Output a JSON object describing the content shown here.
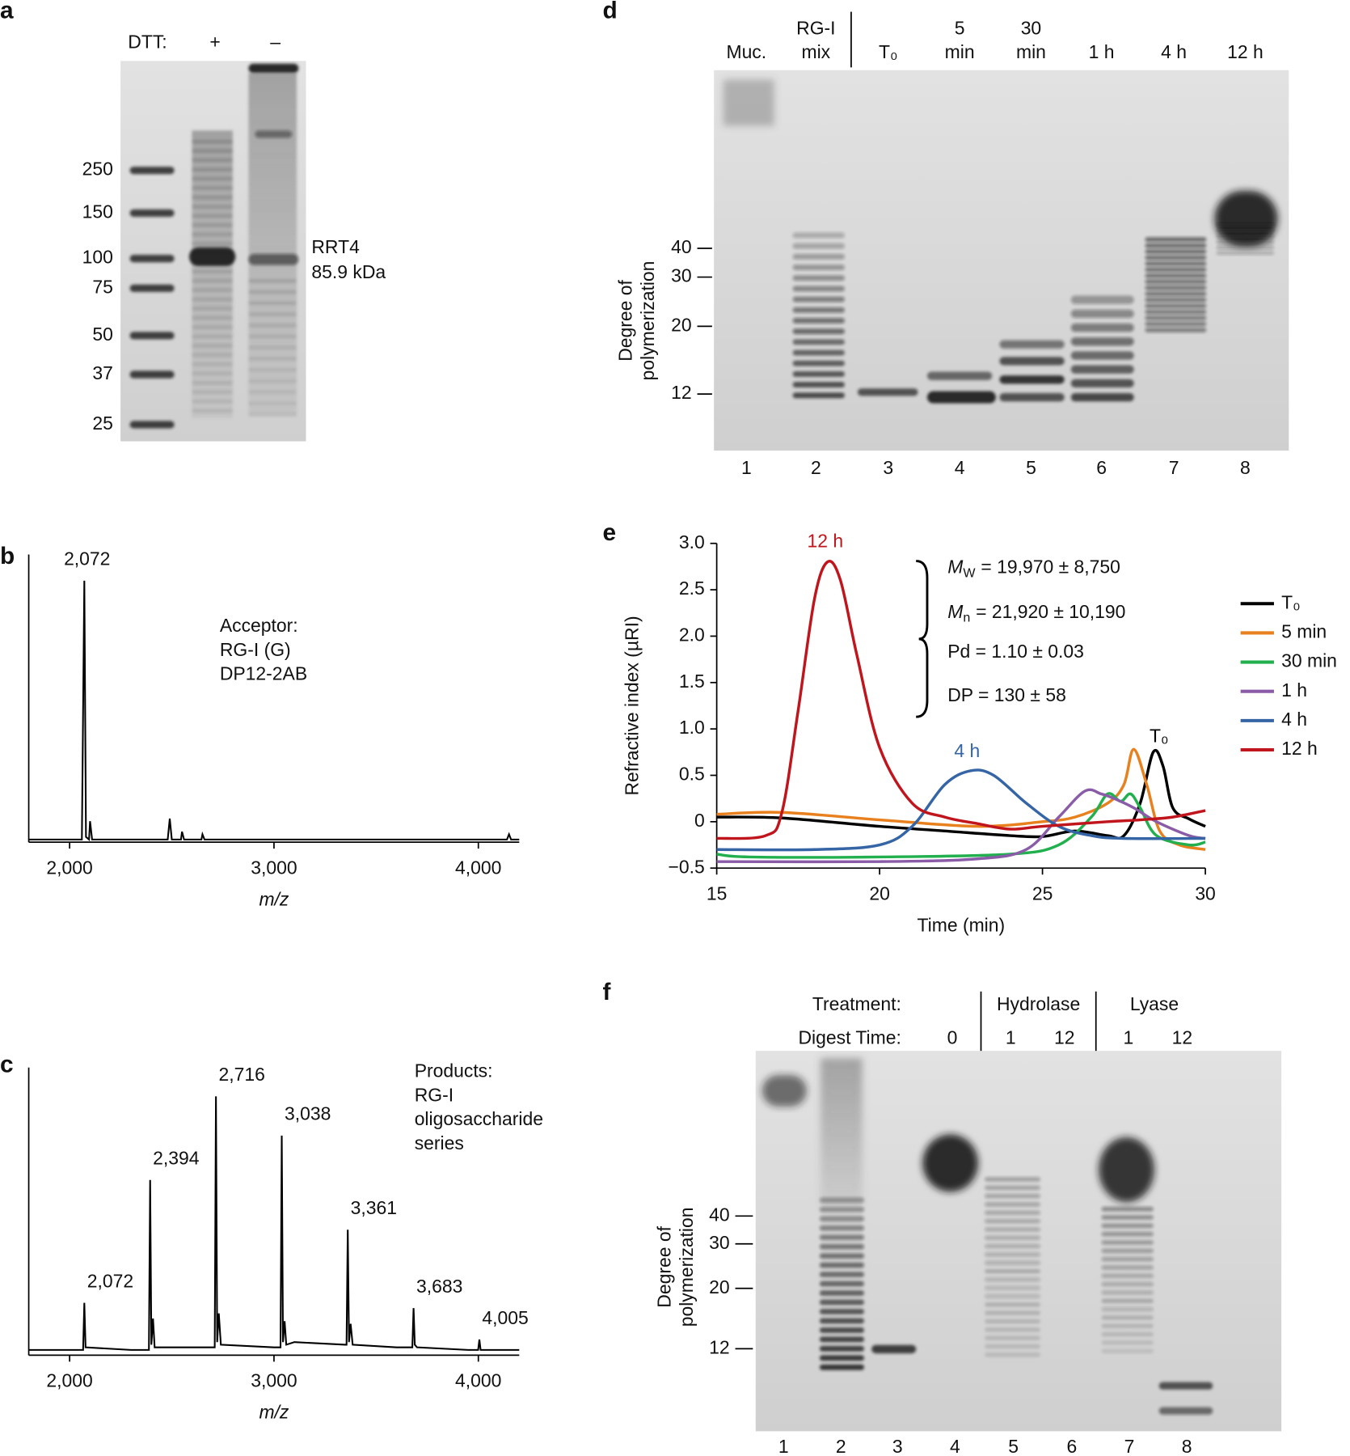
{
  "chart_data": [
    {
      "type": "line",
      "panel_label": "b",
      "x_label": "m/z",
      "color": "#000000",
      "xlim": [
        1800,
        4200
      ],
      "ylim": [
        0,
        110
      ],
      "xticks": [
        {
          "value": 2000,
          "label": "2,000"
        },
        {
          "value": 3000,
          "label": "3,000"
        },
        {
          "value": 4000,
          "label": "4,000"
        }
      ],
      "x": [
        1800,
        2000,
        2060,
        2072,
        2080,
        2095,
        2100,
        2110,
        2480,
        2490,
        2500,
        2545,
        2550,
        2560,
        2645,
        2650,
        2660,
        3000,
        3500,
        4140,
        4150,
        4160,
        4200
      ],
      "values": [
        1,
        1,
        1,
        100,
        2,
        1,
        8,
        1,
        1,
        9,
        1,
        1,
        4,
        1,
        1,
        3,
        1,
        1,
        1,
        1,
        3,
        1,
        1
      ],
      "peak_labels": [
        {
          "value": 2072,
          "label": "2,072"
        }
      ],
      "notes": [
        "Acceptor:",
        "RG-I (G)",
        "DP12-2AB"
      ]
    },
    {
      "type": "line",
      "panel_label": "c",
      "x_label": "m/z",
      "color": "#000000",
      "xlim": [
        1800,
        4200
      ],
      "ylim": [
        0,
        110
      ],
      "xticks": [
        {
          "value": 2000,
          "label": "2,000"
        },
        {
          "value": 3000,
          "label": "3,000"
        },
        {
          "value": 4000,
          "label": "4,000"
        }
      ],
      "x": [
        1800,
        2000,
        2066,
        2072,
        2078,
        2300,
        2388,
        2394,
        2400,
        2408,
        2416,
        2700,
        2710,
        2716,
        2722,
        2730,
        2740,
        3000,
        3032,
        3038,
        3044,
        3052,
        3060,
        3100,
        3350,
        3355,
        3361,
        3367,
        3375,
        3385,
        3600,
        3677,
        3683,
        3689,
        3700,
        3950,
        3999,
        4005,
        4011,
        4200
      ],
      "values": [
        2,
        2,
        2,
        20,
        3,
        2,
        2,
        67,
        4,
        14,
        3,
        3,
        3,
        99,
        5,
        16,
        4,
        3,
        3,
        84,
        5,
        13,
        4,
        5,
        4,
        4,
        48,
        5,
        12,
        4,
        3,
        3,
        18,
        4,
        3,
        2,
        2,
        6,
        2,
        2
      ],
      "peak_labels": [
        {
          "value": 2072,
          "label": "2,072"
        },
        {
          "value": 2394,
          "label": "2,394"
        },
        {
          "value": 2716,
          "label": "2,716"
        },
        {
          "value": 3038,
          "label": "3,038"
        },
        {
          "value": 3361,
          "label": "3,361"
        },
        {
          "value": 3683,
          "label": "3,683"
        },
        {
          "value": 4005,
          "label": "4,005"
        }
      ],
      "notes": [
        "Products:",
        "RG-I",
        "oligosaccharide",
        "series"
      ]
    },
    {
      "type": "line",
      "panel_label": "e",
      "x_label": "Time (min)",
      "y_label": "Refractive index (µRI)",
      "xlim": [
        15,
        30
      ],
      "ylim": [
        -0.5,
        3.0
      ],
      "xticks": [
        15,
        20,
        25,
        30
      ],
      "yticks": [
        {
          "value": -0.5,
          "label": "−0.5"
        },
        0,
        0.5,
        {
          "value": 1,
          "label": "1.0"
        },
        1.5,
        {
          "value": 2,
          "label": "2.0"
        },
        2.5,
        {
          "value": 3,
          "label": "3.0"
        }
      ],
      "series": [
        {
          "name": "T₀",
          "color": "#000000",
          "x": [
            15,
            17,
            20,
            22,
            24,
            25,
            26,
            27,
            27.5,
            28,
            28.4,
            28.7,
            29,
            29.5,
            30
          ],
          "values": [
            0.05,
            0.04,
            -0.05,
            -0.1,
            -0.15,
            -0.16,
            -0.1,
            -0.15,
            -0.15,
            0.2,
            0.75,
            0.6,
            0.15,
            0.03,
            -0.05
          ]
        },
        {
          "name": "5 min",
          "color": "#e8801e",
          "x": [
            15,
            17,
            20,
            23,
            25,
            26,
            27,
            27.5,
            27.8,
            28.2,
            28.6,
            29.2,
            30
          ],
          "values": [
            0.08,
            0.1,
            0.02,
            -0.05,
            0.0,
            0.05,
            0.2,
            0.4,
            0.78,
            0.4,
            -0.1,
            -0.25,
            -0.3
          ]
        },
        {
          "name": "30 min",
          "color": "#22b04e",
          "x": [
            15,
            16,
            20,
            24,
            25.5,
            26.5,
            27,
            27.4,
            27.7,
            28,
            28.5,
            29.5,
            30
          ],
          "values": [
            -0.35,
            -0.38,
            -0.38,
            -0.35,
            -0.25,
            0.05,
            0.3,
            0.22,
            0.3,
            0.15,
            -0.15,
            -0.25,
            -0.22
          ]
        },
        {
          "name": "1 h",
          "color": "#8a5ca8",
          "x": [
            15,
            20,
            23,
            24.5,
            25.5,
            26.3,
            26.8,
            27.2,
            27.8,
            28.5,
            29.5,
            30
          ],
          "values": [
            -0.43,
            -0.43,
            -0.4,
            -0.3,
            0.05,
            0.33,
            0.3,
            0.25,
            0.15,
            0.0,
            -0.15,
            -0.18
          ]
        },
        {
          "name": "4 h",
          "color": "#3565a5",
          "x": [
            15,
            18,
            20,
            21,
            22,
            22.8,
            23.5,
            24.5,
            25.5,
            26.5,
            27.5,
            30
          ],
          "values": [
            -0.3,
            -0.3,
            -0.25,
            -0.05,
            0.4,
            0.55,
            0.5,
            0.2,
            -0.05,
            -0.15,
            -0.18,
            -0.18
          ]
        },
        {
          "name": "12 h",
          "color": "#c0151d",
          "x": [
            15,
            16.5,
            17,
            17.5,
            18,
            18.4,
            18.8,
            19.3,
            20,
            21,
            22,
            23,
            24,
            25,
            27,
            28,
            29,
            30
          ],
          "values": [
            -0.18,
            -0.15,
            0.1,
            1.2,
            2.4,
            2.8,
            2.6,
            1.8,
            0.8,
            0.2,
            0.05,
            -0.02,
            -0.08,
            -0.05,
            0.0,
            0.02,
            0.05,
            0.12
          ]
        }
      ],
      "curve_labels": [
        {
          "text": "12 h",
          "color": "#c0151d"
        },
        {
          "text": "4 h",
          "color": "#3565a5"
        },
        {
          "text": "T₀",
          "color": "#000000"
        }
      ],
      "stats": [
        {
          "main": "M",
          "sub": "W",
          "rest": "= 19,970 ± 8,750"
        },
        {
          "main": "M",
          "sub": "n",
          "rest": "= 21,920 ± 10,190"
        },
        {
          "main": "Pd = 1.10 ± 0.03"
        },
        {
          "main": "DP = 130 ± 58"
        }
      ]
    }
  ],
  "gels": {
    "a": {
      "panel_label": "a",
      "dtt_label": "DTT:",
      "dtt": [
        "+",
        "–"
      ],
      "ladder": [
        250,
        150,
        100,
        75,
        50,
        37,
        25
      ],
      "band_label": [
        "RRT4",
        "85.9 kDa"
      ]
    },
    "d": {
      "panel_label": "d",
      "lanes": [
        {
          "header": [
            "Muc."
          ]
        },
        {
          "header": [
            "RG-I",
            "mix"
          ]
        },
        {
          "header": [
            "T₀"
          ]
        },
        {
          "header": [
            "5",
            "min"
          ]
        },
        {
          "header": [
            "30",
            "min"
          ]
        },
        {
          "header": [
            "1 h"
          ]
        },
        {
          "header": [
            "4 h"
          ]
        },
        {
          "header": [
            "12 h"
          ]
        }
      ],
      "lane_numbers": [
        1,
        2,
        3,
        4,
        5,
        6,
        7,
        8
      ],
      "axis_label": [
        "Degree of",
        "polymerization"
      ],
      "dp_ticks": [
        40,
        30,
        20,
        12
      ]
    },
    "f": {
      "panel_label": "f",
      "treatment_label": "Treatment:",
      "treatments": [
        "Hydrolase",
        "Lyase"
      ],
      "digest_label": "Digest Time:",
      "digest_times": [
        0,
        1,
        12,
        1,
        12
      ],
      "lane_numbers": [
        1,
        2,
        3,
        4,
        5,
        6,
        7,
        8
      ],
      "axis_label": [
        "Degree of",
        "polymerization"
      ],
      "dp_ticks": [
        40,
        30,
        20,
        12
      ]
    }
  }
}
